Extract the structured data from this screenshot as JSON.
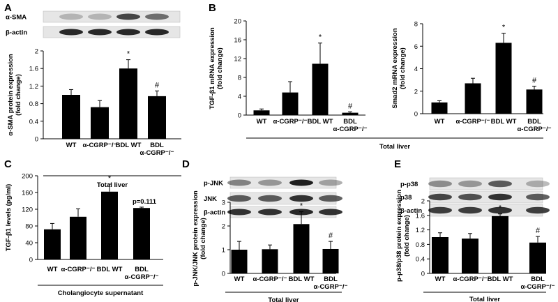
{
  "chart_data": [
    {
      "type": "bar",
      "panel": "A",
      "ylabel": "α-SMA protein expression (fold change)",
      "ylabel_lines": [
        "α-SMA protein expression",
        "(fold change)"
      ],
      "ylim": [
        0,
        2
      ],
      "yticks": [
        0,
        0.4,
        0.8,
        1.2,
        1.6,
        2
      ],
      "ytick_labels": [
        "0",
        "0.4",
        "0.8",
        "1.2",
        "1.6",
        "2"
      ],
      "categories": [
        "WT",
        "α-CGRP⁻/⁻",
        "BDL WT",
        "BDL α-CGRP⁻/⁻"
      ],
      "category_lines": [
        [
          "WT"
        ],
        [
          "α-CGRP⁻/⁻"
        ],
        [
          "BDL WT"
        ],
        [
          "BDL",
          "α-CGRP⁻/⁻"
        ]
      ],
      "values": [
        1.0,
        0.72,
        1.6,
        0.97
      ],
      "errors": [
        0.12,
        0.15,
        0.2,
        0.12
      ],
      "annotations": [
        "",
        "",
        "*",
        "#"
      ],
      "group_label": "Total  liver",
      "blot_labels": [
        "α-SMA",
        "β-actin"
      ],
      "color": "#000000"
    },
    {
      "type": "bar",
      "panel": "B",
      "ylabel": "TGF-β1 mRNA expression (fold change)",
      "ylabel_lines": [
        "TGF-β1 mRNA expression",
        "(fold change)"
      ],
      "ylim": [
        0,
        20
      ],
      "yticks": [
        0,
        4,
        8,
        12,
        16,
        20
      ],
      "ytick_labels": [
        "0",
        "4",
        "8",
        "12",
        "16",
        "20"
      ],
      "categories": [
        "WT",
        "α-CGRP⁻/⁻",
        "BDL WT",
        "BDL α-CGRP⁻/⁻"
      ],
      "category_lines": [
        [
          "WT"
        ],
        [
          "α-CGRP⁻/⁻"
        ],
        [
          "BDL WT"
        ],
        [
          "BDL",
          "α-CGRP⁻/⁻"
        ]
      ],
      "values": [
        1.0,
        4.8,
        10.9,
        0.5
      ],
      "errors": [
        0.3,
        2.3,
        4.4,
        0.2
      ],
      "annotations": [
        "",
        "",
        "*",
        "#"
      ],
      "color": "#000000"
    },
    {
      "type": "bar",
      "panel": "B-right",
      "ylabel": "Smad2 mRNA expression (fold change)",
      "ylabel_lines": [
        "Smad2 mRNA expression",
        "(fold change)"
      ],
      "ylim": [
        0,
        8
      ],
      "yticks": [
        0,
        2,
        4,
        6,
        8
      ],
      "ytick_labels": [
        "0",
        "2",
        "4",
        "6",
        "8"
      ],
      "categories": [
        "WT",
        "α-CGRP⁻/⁻",
        "BDL WT",
        "BDL α-CGRP⁻/⁻"
      ],
      "category_lines": [
        [
          "WT"
        ],
        [
          "α-CGRP⁻/⁻"
        ],
        [
          "BDL WT"
        ],
        [
          "BDL",
          "α-CGRP⁻/⁻"
        ]
      ],
      "values": [
        1.0,
        2.7,
        6.3,
        2.15
      ],
      "errors": [
        0.15,
        0.45,
        0.85,
        0.3
      ],
      "annotations": [
        "",
        "",
        "*",
        "#"
      ],
      "group_label": "Total liver",
      "color": "#000000"
    },
    {
      "type": "bar",
      "panel": "C",
      "ylabel": "TGF-β1  levels (pg/ml)",
      "ylabel_lines": [
        "TGF-β1  levels (pg/ml)"
      ],
      "ylim": [
        0,
        200
      ],
      "yticks": [
        0,
        40,
        80,
        120,
        160,
        200
      ],
      "ytick_labels": [
        "0",
        "40",
        "80",
        "120",
        "160",
        "200"
      ],
      "categories": [
        "WT",
        "α-CGRP⁻/⁻",
        "BDL WT",
        "BDL α-CGRP⁻/⁻"
      ],
      "category_lines": [
        [
          "WT"
        ],
        [
          "α-CGRP⁻/⁻"
        ],
        [
          "BDL WT"
        ],
        [
          "BDL",
          "α-CGRP⁻/⁻"
        ]
      ],
      "values": [
        72,
        102,
        162,
        123
      ],
      "errors": [
        14,
        19,
        18,
        2
      ],
      "annotations": [
        "",
        "",
        "*",
        ""
      ],
      "p_value_text": "p=0.111",
      "group_label": "Cholangiocyte supernatant",
      "color": "#000000"
    },
    {
      "type": "bar",
      "panel": "D",
      "ylabel": "p-JNK/JNK protein expression (fold change)",
      "ylabel_lines": [
        "p-JNK/JNK protein expression",
        "(fold change)"
      ],
      "ylim": [
        0,
        3
      ],
      "yticks": [
        0,
        1,
        2,
        3
      ],
      "ytick_labels": [
        "0",
        "1",
        "2",
        "3"
      ],
      "categories": [
        "WT",
        "α-CGRP⁻/⁻",
        "BDL WT",
        "BDL α-CGRP⁻/⁻"
      ],
      "category_lines": [
        [
          "WT"
        ],
        [
          "α-CGRP⁻/⁻"
        ],
        [
          "BDL WT"
        ],
        [
          "BDL",
          "α-CGRP⁻/⁻"
        ]
      ],
      "values": [
        1.0,
        1.02,
        2.08,
        1.03
      ],
      "errors": [
        0.35,
        0.18,
        0.52,
        0.32
      ],
      "annotations": [
        "",
        "",
        "*",
        "#"
      ],
      "group_label": "Total  liver",
      "blot_labels": [
        "p-JNK",
        "JNK",
        "β-actin"
      ],
      "color": "#000000"
    },
    {
      "type": "bar",
      "panel": "E",
      "ylabel": "p-p38/p38 protein expression (fold change)",
      "ylabel_lines": [
        "p-p38/p38 protein expression",
        "(fold change)"
      ],
      "ylim": [
        0,
        2
      ],
      "yticks": [
        0,
        0.4,
        0.8,
        1.2,
        1.6,
        2
      ],
      "ytick_labels": [
        "0",
        "0.4",
        "0.8",
        "1.2",
        "1.6",
        "2"
      ],
      "categories": [
        "WT",
        "α-CGRP⁻/⁻",
        "BDL WT",
        "BDL α-CGRP⁻/⁻"
      ],
      "category_lines": [
        [
          "WT"
        ],
        [
          "α-CGRP⁻/⁻"
        ],
        [
          "BDL WT"
        ],
        [
          "BDL",
          "α-CGRP⁻/⁻"
        ]
      ],
      "values": [
        1.0,
        0.96,
        1.58,
        0.85
      ],
      "errors": [
        0.12,
        0.14,
        0.06,
        0.17
      ],
      "annotations": [
        "",
        "",
        "*",
        "#"
      ],
      "group_label": "Total  liver",
      "blot_labels": [
        "p-p38",
        "p38",
        "β-actin"
      ],
      "color": "#000000"
    }
  ]
}
